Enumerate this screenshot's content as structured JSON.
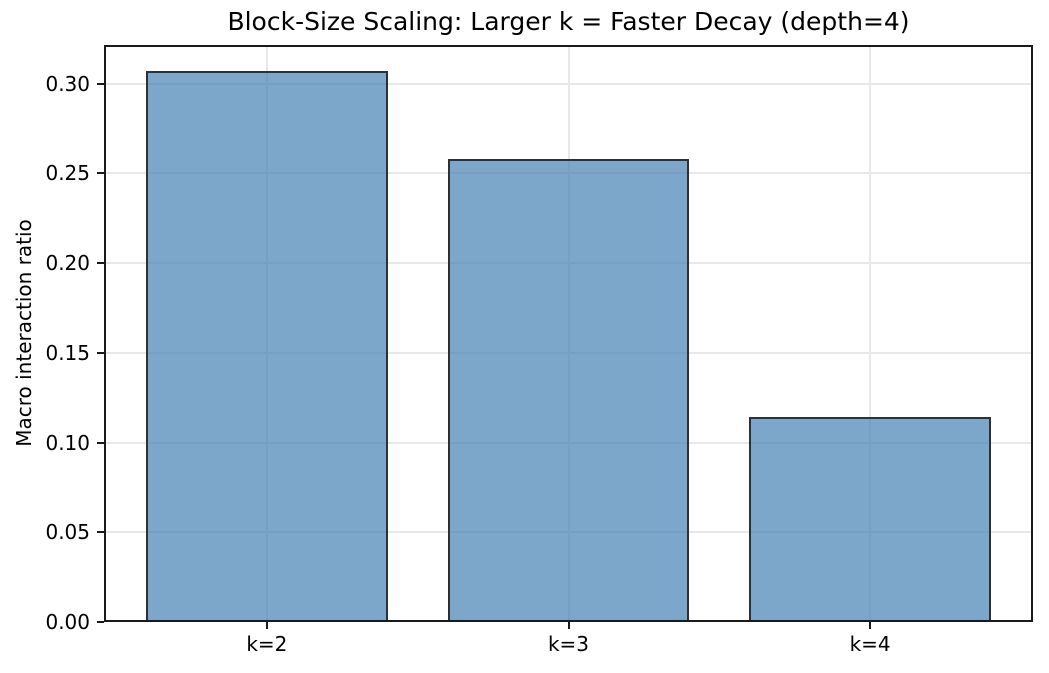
{
  "figure": {
    "background": "#ffffff"
  },
  "chart_data": {
    "type": "bar",
    "title": "Block-Size Scaling: Larger k = Faster Decay (depth=4)",
    "xlabel": "",
    "ylabel": "Macro interaction ratio",
    "categories": [
      "k=2",
      "k=3",
      "k=4"
    ],
    "values": [
      0.306,
      0.257,
      0.113
    ],
    "ylim": [
      0,
      0.3216
    ],
    "yticks": [
      0.0,
      0.05,
      0.1,
      0.15,
      0.2,
      0.25,
      0.3
    ],
    "ytick_labels": [
      "0.00",
      "0.05",
      "0.10",
      "0.15",
      "0.20",
      "0.25",
      "0.30"
    ],
    "grid": true,
    "legend_position": "none",
    "bar_fill_color": "#4682B4",
    "bar_fill_alpha": 0.7,
    "bar_edge_color": "#2d3136",
    "grid_color": "#e8e8e8",
    "spine_color": "#1a1a1a",
    "text_color": "#000000"
  }
}
